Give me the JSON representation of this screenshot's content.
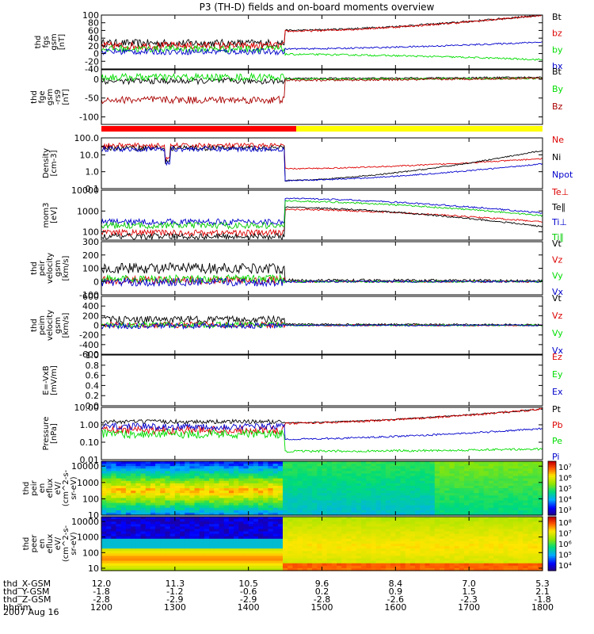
{
  "title": "P3 (TH-D) fields and on-board moments overview",
  "date_label": "2007 Aug 16",
  "chart_data": {
    "type": "line",
    "x_range_hours": [
      12,
      18
    ],
    "x_ticks": [
      {
        "t": 12,
        "X": "12.0",
        "Y": "-1.8",
        "Z": "-2.8",
        "hhmm": "1200"
      },
      {
        "t": 13,
        "X": "11.3",
        "Y": "-1.2",
        "Z": "-2.9",
        "hhmm": "1300"
      },
      {
        "t": 14,
        "X": "10.5",
        "Y": "-0.6",
        "Z": "-2.9",
        "hhmm": "1400"
      },
      {
        "t": 15,
        "X": "9.6",
        "Y": "0.2",
        "Z": "-2.8",
        "hhmm": "1500"
      },
      {
        "t": 16,
        "X": "8.4",
        "Y": "0.9",
        "Z": "-2.6",
        "hhmm": "1600"
      },
      {
        "t": 17,
        "X": "7.0",
        "Y": "1.5",
        "Z": "-2.3",
        "hhmm": "1700"
      },
      {
        "t": 18,
        "X": "5.3",
        "Y": "2.1",
        "Z": "-1.8",
        "hhmm": "1800"
      }
    ],
    "x_row_labels": [
      "thd_X-GSM",
      "thd_Y-GSM",
      "thd_Z-GSM",
      "hhmm"
    ],
    "panels": [
      {
        "id": "fgs",
        "ylabel": [
          "thd",
          "fgs",
          "gsm",
          "[nT]"
        ],
        "scale": "linear",
        "ylim": [
          -40,
          100
        ],
        "yticks": [
          "100",
          "80",
          "60",
          "40",
          "20",
          "0",
          "-20",
          "-40"
        ],
        "ytick_values": [
          100,
          80,
          60,
          40,
          20,
          0,
          -20,
          -40
        ],
        "series": [
          {
            "name": "Bt",
            "color": "#000000",
            "pre": 27,
            "jump": 58,
            "post": [
              60,
              100
            ],
            "noise": 10
          },
          {
            "name": "bz",
            "color": "#dd0000",
            "pre": 20,
            "jump": 55,
            "post": [
              58,
              100
            ],
            "noise": 10
          },
          {
            "name": "by",
            "color": "#00dd00",
            "pre": 12,
            "jump": -5,
            "post": [
              -2,
              -16
            ],
            "noise": 9
          },
          {
            "name": "bx",
            "color": "#0000cc",
            "pre": 5,
            "jump": 12,
            "post": [
              12,
              30
            ],
            "noise": 8
          }
        ]
      },
      {
        "id": "fge",
        "ylabel": [
          "thd",
          "fge",
          "gsm",
          "-rs9",
          "[nT]"
        ],
        "scale": "linear",
        "ylim": [
          -120,
          25
        ],
        "yticks": [
          "0",
          "-50",
          "-100"
        ],
        "ytick_values": [
          0,
          -50,
          -100
        ],
        "series": [
          {
            "name": "Bt",
            "color": "#000000",
            "pre": -5,
            "jump": 2,
            "post": [
              2,
              5
            ],
            "noise": 8
          },
          {
            "name": "By",
            "color": "#00dd00",
            "pre": 5,
            "jump": 0,
            "post": [
              0,
              2
            ],
            "noise": 10
          },
          {
            "name": "Bz",
            "color": "#aa0000",
            "pre": -55,
            "jump": -5,
            "post": [
              -3,
              3
            ],
            "noise": 10
          }
        ]
      },
      {
        "id": "density",
        "ylabel": [
          "Density",
          "[cm-3]"
        ],
        "scale": "log",
        "ylim": [
          0.1,
          100
        ],
        "yticks": [
          "100.0",
          "10.0",
          "1.0",
          "0.1"
        ],
        "ytick_values": [
          100,
          10,
          1,
          0.1
        ],
        "series": [
          {
            "name": "Ne",
            "color": "#dd0000",
            "pre": 35,
            "jump": 1.5,
            "post": [
              1.5,
              6
            ],
            "noise": 0.15
          },
          {
            "name": "Ni",
            "color": "#000000",
            "pre": 25,
            "jump": 0.4,
            "post": [
              0.3,
              18
            ],
            "noise": 0.15
          },
          {
            "name": "Npot",
            "color": "#0000cc",
            "pre": 22,
            "jump": 0.35,
            "post": [
              0.3,
              3
            ],
            "noise": 0.15
          }
        ]
      },
      {
        "id": "mom",
        "ylabel": [
          "mom3",
          "[eV]"
        ],
        "scale": "log",
        "ylim": [
          40,
          10000
        ],
        "yticks": [
          "10000",
          "1000",
          "100"
        ],
        "ytick_values": [
          10000,
          1000,
          100
        ],
        "series": [
          {
            "name": "Te⊥",
            "color": "#dd0000",
            "pre": 90,
            "jump": 1200,
            "post": [
              1200,
              300
            ],
            "noise": 0.15
          },
          {
            "name": "Te∥",
            "color": "#000000",
            "pre": 60,
            "jump": 1500,
            "post": [
              1500,
              180
            ],
            "noise": 0.15
          },
          {
            "name": "Ti⊥",
            "color": "#0000cc",
            "pre": 300,
            "jump": 4000,
            "post": [
              4000,
              800
            ],
            "noise": 0.15
          },
          {
            "name": "Ti∥",
            "color": "#00cc00",
            "pre": 200,
            "jump": 3000,
            "post": [
              3000,
              600
            ],
            "noise": 0.15
          }
        ]
      },
      {
        "id": "peir",
        "ylabel": [
          "thd",
          "peir",
          "velocity",
          "gsm",
          "[km/s]"
        ],
        "scale": "linear",
        "ylim": [
          -100,
          300
        ],
        "yticks": [
          "300",
          "200",
          "100",
          "0",
          "-100"
        ],
        "ytick_values": [
          300,
          200,
          100,
          0,
          -100
        ],
        "series": [
          {
            "name": "Vt",
            "color": "#000000",
            "pre": 100,
            "jump": 10,
            "post": [
              10,
              5
            ],
            "noise": 40
          },
          {
            "name": "Vz",
            "color": "#dd0000",
            "pre": 10,
            "jump": 0,
            "post": [
              0,
              0
            ],
            "noise": 30
          },
          {
            "name": "Vy",
            "color": "#00dd00",
            "pre": 20,
            "jump": 0,
            "post": [
              0,
              0
            ],
            "noise": 30
          },
          {
            "name": "Vx",
            "color": "#0000cc",
            "pre": -5,
            "jump": 0,
            "post": [
              0,
              0
            ],
            "noise": 30
          }
        ]
      },
      {
        "id": "peim",
        "ylabel": [
          "thd",
          "peim",
          "velocity",
          "gsm",
          "[km/s]"
        ],
        "scale": "linear",
        "ylim": [
          -600,
          600
        ],
        "yticks": [
          "600",
          "400",
          "200",
          "0",
          "-200",
          "-400",
          "-600"
        ],
        "ytick_values": [
          600,
          400,
          200,
          0,
          -200,
          -400,
          -600
        ],
        "series": [
          {
            "name": "Vt",
            "color": "#000000",
            "pre": 120,
            "jump": 20,
            "post": [
              20,
              10
            ],
            "noise": 70
          },
          {
            "name": "Vz",
            "color": "#dd0000",
            "pre": 10,
            "jump": 0,
            "post": [
              0,
              0
            ],
            "noise": 60
          },
          {
            "name": "Vy",
            "color": "#00dd00",
            "pre": 10,
            "jump": 0,
            "post": [
              0,
              0
            ],
            "noise": 60
          },
          {
            "name": "Vx",
            "color": "#0000cc",
            "pre": -10,
            "jump": 0,
            "post": [
              0,
              0
            ],
            "noise": 60
          }
        ]
      },
      {
        "id": "efield",
        "ylabel": [
          "E=-VxB",
          "[mV/m]"
        ],
        "scale": "linear",
        "ylim": [
          0,
          1
        ],
        "yticks": [
          "1.0",
          "0.8",
          "0.6",
          "0.4",
          "0.2",
          "0.0"
        ],
        "ytick_values": [
          1.0,
          0.8,
          0.6,
          0.4,
          0.2,
          0.0
        ],
        "series": [
          {
            "name": "Ez",
            "color": "#dd0000"
          },
          {
            "name": "Ey",
            "color": "#00dd00"
          },
          {
            "name": "Ex",
            "color": "#0000cc"
          }
        ]
      },
      {
        "id": "pressure",
        "ylabel": [
          "Pressure",
          "[nPa]"
        ],
        "scale": "log",
        "ylim": [
          0.01,
          10
        ],
        "yticks": [
          "10.00",
          "1.00",
          "0.10",
          "0.01"
        ],
        "ytick_values": [
          10,
          1,
          0.1,
          0.01
        ],
        "series": [
          {
            "name": "Pt",
            "color": "#000000",
            "pre": 1.5,
            "jump": 1.2,
            "post": [
              1.3,
              8
            ],
            "noise": 0.12
          },
          {
            "name": "Pb",
            "color": "#dd0000",
            "pre": 0.5,
            "jump": 1.1,
            "post": [
              1.2,
              8
            ],
            "noise": 0.25
          },
          {
            "name": "Pe",
            "color": "#00dd00",
            "pre": 0.3,
            "jump": 0.03,
            "post": [
              0.03,
              0.04
            ],
            "noise": 0.25
          },
          {
            "name": "Pi",
            "color": "#0000cc",
            "pre": 0.8,
            "jump": 0.15,
            "post": [
              0.15,
              0.6
            ],
            "noise": 0.2
          }
        ]
      },
      {
        "id": "peir_spec",
        "type": "heatmap",
        "ylabel": [
          "thd",
          "peir",
          "en",
          "eflux",
          "eV/",
          "(cm^2-s-",
          "sr-eV)"
        ],
        "scale": "log",
        "ylim": [
          10,
          20000
        ],
        "yticks": [
          "10000",
          "1000",
          "100",
          "10"
        ],
        "ytick_values": [
          10000,
          1000,
          100,
          10
        ],
        "colorbar_ticks": [
          "10⁷",
          "10⁶",
          "10⁵",
          "10⁴",
          "10³"
        ],
        "colorbar_values": [
          7,
          6,
          5,
          4,
          3
        ],
        "colorbar_range": [
          2.5,
          7.5
        ]
      },
      {
        "id": "peer_spec",
        "type": "heatmap",
        "ylabel": [
          "thd",
          "peer",
          "en",
          "eflux",
          "eV/",
          "(cm^2-s-",
          "sr-eV)"
        ],
        "scale": "log",
        "ylim": [
          7,
          20000
        ],
        "yticks": [
          "10000",
          "1000",
          "100",
          "10"
        ],
        "ytick_values": [
          10000,
          1000,
          100,
          10
        ],
        "colorbar_ticks": [
          "10⁸",
          "10⁷",
          "10⁶",
          "10⁵",
          "10⁴"
        ],
        "colorbar_values": [
          8,
          7,
          6,
          5,
          4
        ],
        "colorbar_range": [
          3.5,
          8.5
        ]
      }
    ],
    "mode_bar": [
      {
        "from": 12.0,
        "to": 14.65,
        "color": "#ff0000"
      },
      {
        "from": 14.65,
        "to": 18.0,
        "color": "#ffff00"
      }
    ],
    "transition_hour": 14.5
  }
}
